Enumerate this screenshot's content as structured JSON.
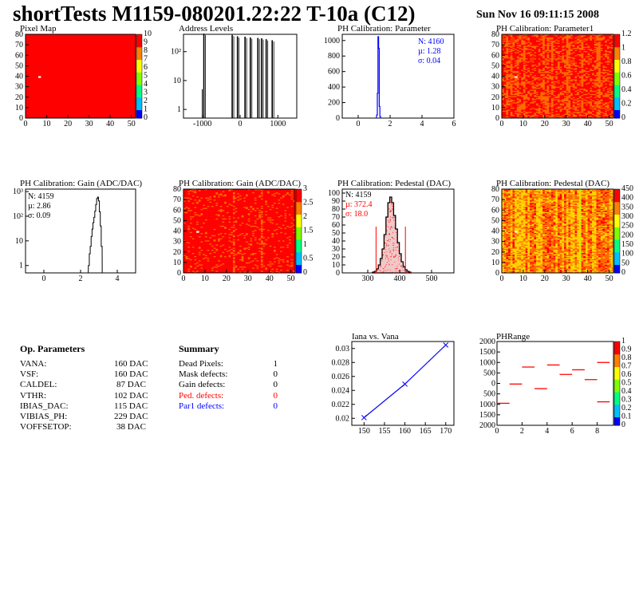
{
  "header": {
    "title": "shortTests M1159-080201.22:22 T-10a (C12)",
    "date": "Sun Nov 16 09:11:15 2008"
  },
  "colors": {
    "map_red": "#ff0000",
    "map_orange": "#ff6a00",
    "map_yellow": "#ffd200",
    "hist_line": "#000000",
    "blue": "#0000ff",
    "red": "#ff0000"
  },
  "op_params": {
    "title": "Op. Parameters",
    "rows": [
      {
        "k": "VANA:",
        "v": "160 DAC"
      },
      {
        "k": "VSF:",
        "v": "160 DAC"
      },
      {
        "k": "CALDEL:",
        "v": "87 DAC"
      },
      {
        "k": "VTHR:",
        "v": "102 DAC"
      },
      {
        "k": "IBIAS_DAC:",
        "v": "115 DAC"
      },
      {
        "k": "VIBIAS_PH:",
        "v": "229 DAC"
      },
      {
        "k": "VOFFSETOP:",
        "v": "38 DAC"
      }
    ]
  },
  "summary": {
    "title": "Summary",
    "rows": [
      {
        "k": "Dead Pixels:",
        "v": "1",
        "color": "black"
      },
      {
        "k": "Mask defects:",
        "v": "0",
        "color": "black"
      },
      {
        "k": "Gain defects:",
        "v": "0",
        "color": "black"
      },
      {
        "k": "Ped. defects:",
        "v": "0",
        "color": "red"
      },
      {
        "k": "Par1 defects:",
        "v": "0",
        "color": "blue"
      }
    ]
  },
  "chart_data": [
    {
      "id": "pixel_map",
      "type": "heatmap",
      "title": "Pixel Map",
      "xlim": [
        0,
        52
      ],
      "ylim": [
        0,
        80
      ],
      "xticks": [
        0,
        10,
        20,
        30,
        40,
        50
      ],
      "yticks": [
        0,
        10,
        20,
        30,
        40,
        50,
        60,
        70,
        80
      ],
      "zlim": [
        0,
        10
      ],
      "zticks": [
        "0",
        "1",
        "2",
        "3",
        "4",
        "5",
        "6",
        "7",
        "8",
        "9",
        "10"
      ],
      "fill_value": 10,
      "dead_pixels": [
        [
          6,
          39
        ]
      ]
    },
    {
      "id": "address_levels",
      "type": "bar",
      "title": "Address Levels",
      "log_y": true,
      "xlim": [
        -1500,
        1500
      ],
      "xticks": [
        "-1000",
        "0",
        "1000"
      ],
      "yticks": [
        "1",
        "10",
        "10²"
      ],
      "peaks": [
        {
          "x": -960,
          "y": 420,
          "y2": 5
        },
        {
          "x": -210,
          "y": 380
        },
        {
          "x": -70,
          "y": 340
        },
        {
          "x": 130,
          "y": 330
        },
        {
          "x": 270,
          "y": 310
        },
        {
          "x": 470,
          "y": 300
        },
        {
          "x": 570,
          "y": 290
        },
        {
          "x": 690,
          "y": 270
        },
        {
          "x": 850,
          "y": 250
        }
      ]
    },
    {
      "id": "ph_cal_parameter",
      "type": "bar",
      "title": "PH Calibration: Parameter",
      "xlim": [
        -1,
        6
      ],
      "ylim": [
        0,
        1080
      ],
      "xticks": [
        "0",
        "2",
        "4",
        "6"
      ],
      "yticks": [
        "0",
        "200",
        "400",
        "600",
        "800",
        "1000"
      ],
      "stats": {
        "N": "N: 4160",
        "mean": "µ: 1.28",
        "rms": "σ: 0.04"
      },
      "bins": [
        [
          1.18,
          40
        ],
        [
          1.22,
          320
        ],
        [
          1.26,
          1050
        ],
        [
          1.3,
          900
        ],
        [
          1.34,
          150
        ],
        [
          1.38,
          20
        ]
      ]
    },
    {
      "id": "ph_cal_parameter1",
      "type": "heatmap",
      "title": "PH Calibration: Parameter1",
      "xlim": [
        0,
        52
      ],
      "ylim": [
        0,
        80
      ],
      "xticks": [
        0,
        10,
        20,
        30,
        40,
        50
      ],
      "yticks": [
        0,
        10,
        20,
        30,
        40,
        50,
        60,
        70,
        80
      ],
      "zticks": [
        "0",
        "0.2",
        "0.4",
        "0.6",
        "0.8",
        "1",
        "1.2"
      ],
      "dead_pixels": [
        [
          6,
          39
        ]
      ]
    },
    {
      "id": "ph_cal_gain",
      "type": "bar",
      "title": "PH Calibration: Gain (ADC/DAC)",
      "log_y": true,
      "xlim": [
        -1,
        5
      ],
      "xticks": [
        "0",
        "2",
        "4"
      ],
      "yticks": [
        "1",
        "10",
        "10²",
        "10³"
      ],
      "stats": {
        "N": "N: 4159",
        "mean": "µ: 2.86",
        "rms": "σ: 0.09"
      },
      "bins": [
        [
          2.45,
          1
        ],
        [
          2.5,
          3
        ],
        [
          2.55,
          6
        ],
        [
          2.6,
          15
        ],
        [
          2.65,
          30
        ],
        [
          2.7,
          55
        ],
        [
          2.75,
          90
        ],
        [
          2.8,
          160
        ],
        [
          2.85,
          300
        ],
        [
          2.9,
          520
        ],
        [
          2.95,
          600
        ],
        [
          3.0,
          420
        ],
        [
          3.05,
          150
        ],
        [
          3.1,
          40
        ],
        [
          3.15,
          6
        ]
      ]
    },
    {
      "id": "ph_cal_gain_map",
      "type": "heatmap",
      "title": "PH Calibration: Gain (ADC/DAC)",
      "xlim": [
        0,
        52
      ],
      "ylim": [
        0,
        80
      ],
      "xticks": [
        0,
        10,
        20,
        30,
        40,
        50
      ],
      "yticks": [
        0,
        10,
        20,
        30,
        40,
        50,
        60,
        70,
        80
      ],
      "zticks": [
        "0",
        "0.5",
        "1",
        "1.5",
        "2",
        "2.5",
        "3"
      ],
      "dead_pixels": [
        [
          6,
          39
        ]
      ]
    },
    {
      "id": "ph_cal_pedestal",
      "type": "bar",
      "title": "PH Calibration: Pedestal (DAC)",
      "xlim": [
        220,
        570
      ],
      "ylim": [
        0,
        105
      ],
      "xticks": [
        "300",
        "400",
        "500"
      ],
      "yticks": [
        "0",
        "10",
        "20",
        "30",
        "40",
        "50",
        "60",
        "70",
        "80",
        "90",
        "100"
      ],
      "stats": {
        "N": "N: 4159",
        "mean": "µ: 372.4",
        "rms": "σ: 18.0"
      },
      "cut_lines": [
        326,
        418
      ],
      "bins": [
        [
          318,
          1
        ],
        [
          324,
          2
        ],
        [
          330,
          5
        ],
        [
          336,
          10
        ],
        [
          342,
          18
        ],
        [
          348,
          30
        ],
        [
          354,
          48
        ],
        [
          360,
          70
        ],
        [
          366,
          88
        ],
        [
          372,
          95
        ],
        [
          378,
          88
        ],
        [
          384,
          72
        ],
        [
          390,
          55
        ],
        [
          396,
          38
        ],
        [
          402,
          24
        ],
        [
          408,
          14
        ],
        [
          414,
          8
        ],
        [
          420,
          4
        ],
        [
          426,
          2
        ],
        [
          432,
          1
        ]
      ]
    },
    {
      "id": "ph_cal_pedestal_map",
      "type": "heatmap",
      "title": "PH Calibration: Pedestal (DAC)",
      "xlim": [
        0,
        52
      ],
      "ylim": [
        0,
        80
      ],
      "xticks": [
        0,
        10,
        20,
        30,
        40,
        50
      ],
      "yticks": [
        0,
        10,
        20,
        30,
        40,
        50,
        60,
        70,
        80
      ],
      "zticks": [
        "0",
        "50",
        "100",
        "150",
        "200",
        "250",
        "300",
        "350",
        "400",
        "450"
      ],
      "dead_pixels": [
        [
          6,
          39
        ]
      ]
    },
    {
      "id": "iana_vs_vana",
      "type": "line",
      "title": "Iana vs. Vana",
      "xlim": [
        147,
        172
      ],
      "ylim": [
        0.019,
        0.031
      ],
      "xticks": [
        "150",
        "155",
        "160",
        "165",
        "170"
      ],
      "yticks": [
        "0.02",
        "0.022",
        "0.024",
        "0.026",
        "0.028",
        "0.03"
      ],
      "x": [
        150,
        160,
        170
      ],
      "y": [
        0.0201,
        0.0249,
        0.0305
      ]
    },
    {
      "id": "phrange",
      "type": "scatter",
      "title": "PHRange",
      "xlim": [
        0,
        9.3
      ],
      "ylim": [
        -2000,
        2000
      ],
      "xticks": [
        "0",
        "2",
        "4",
        "6",
        "8"
      ],
      "yticks": [
        "2000",
        "1500",
        "1000",
        "500",
        "0",
        "500",
        "1000",
        "1500",
        "2000"
      ],
      "zticks": [
        "0",
        "0.1",
        "0.2",
        "0.3",
        "0.4",
        "0.5",
        "0.6",
        "0.7",
        "0.8",
        "0.9",
        "1"
      ],
      "segments": [
        [
          0.5,
          -950
        ],
        [
          1.5,
          -30
        ],
        [
          2.5,
          780
        ],
        [
          3.5,
          -250
        ],
        [
          4.5,
          880
        ],
        [
          5.5,
          430
        ],
        [
          6.5,
          650
        ],
        [
          7.5,
          180
        ],
        [
          8.5,
          1000
        ],
        [
          8.5,
          -880
        ]
      ]
    }
  ]
}
